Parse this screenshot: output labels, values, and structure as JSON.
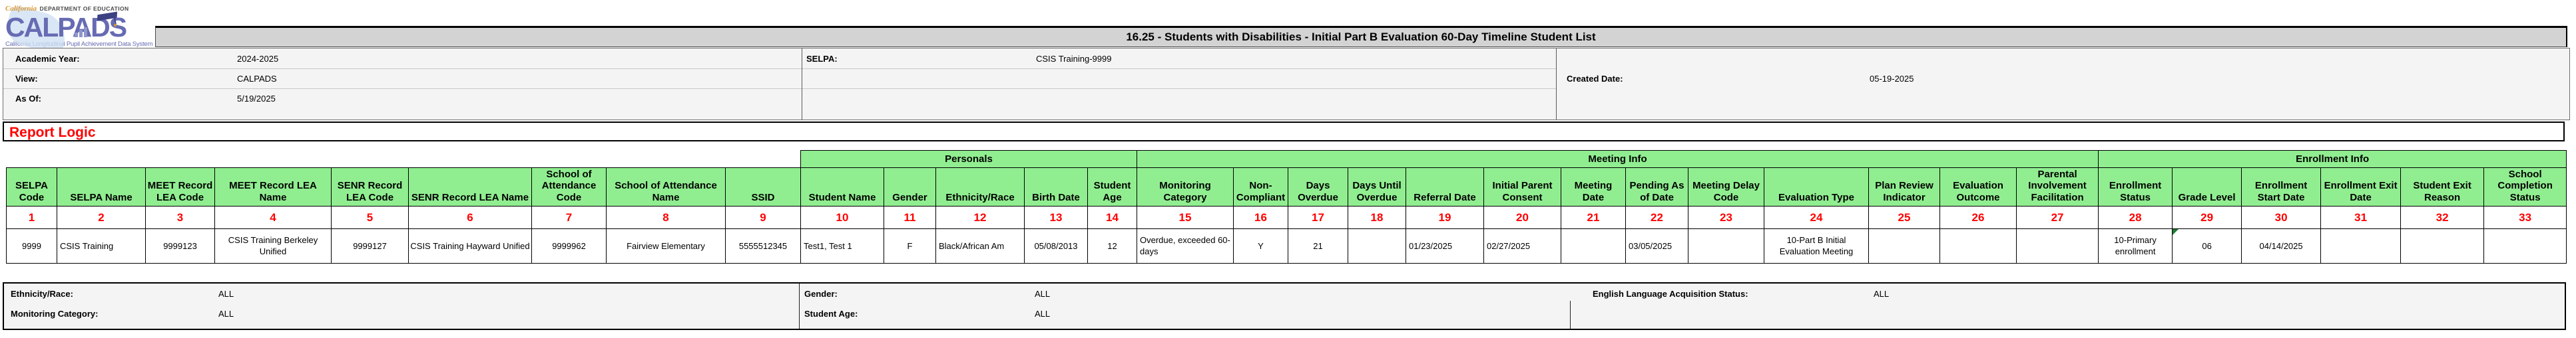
{
  "colors": {
    "header_green": "#90EE90",
    "number_red": "#FF0000",
    "title_bar_gray": "#D3D3D3",
    "logo_blue": "#666BB3",
    "logo_orange": "#D9972F",
    "report_logic_red": "#FF0000"
  },
  "logo": {
    "dept_prefix": "California",
    "dept_text": "DEPARTMENT OF EDUCATION",
    "name": "CALPADS",
    "tagline": "California Longitudinal Pupil Achievement Data System"
  },
  "title_bar": {
    "title": "16.25 - Students with Disabilities - Initial Part B Evaluation 60-Day Timeline Student List"
  },
  "info_panel": {
    "fields_left": [
      {
        "label": "Academic Year:",
        "value": "2024-2025"
      },
      {
        "label": "View:",
        "value": "CALPADS"
      },
      {
        "label": "As Of:",
        "value": "5/19/2025"
      }
    ],
    "selpa": {
      "label": "SELPA:",
      "value": "CSIS Training-9999"
    },
    "created": {
      "label": "Created Date:",
      "value": "05-19-2025"
    }
  },
  "report_logic_heading": "Report Logic",
  "table": {
    "lead_cols_without_group": 9,
    "groups": [
      {
        "label": "Personals",
        "colspan": 5
      },
      {
        "label": "Meeting Info",
        "colspan": 13
      },
      {
        "label": "Enrollment Info",
        "colspan": 6
      }
    ],
    "columns": [
      {
        "n": 1,
        "label": "SELPA Code",
        "w": 76
      },
      {
        "n": 2,
        "label": "SELPA Name",
        "w": 133,
        "align": "left"
      },
      {
        "n": 3,
        "label": "MEET Record LEA Code",
        "w": 104
      },
      {
        "n": 4,
        "label": "MEET Record LEA Name",
        "w": 175
      },
      {
        "n": 5,
        "label": "SENR Record LEA Code",
        "w": 116
      },
      {
        "n": 6,
        "label": "SENR Record LEA Name",
        "w": 185
      },
      {
        "n": 7,
        "label": "School of Attendance Code",
        "w": 112
      },
      {
        "n": 8,
        "label": "School of Attendance Name",
        "w": 179
      },
      {
        "n": 9,
        "label": "SSID",
        "w": 113
      },
      {
        "n": 10,
        "label": "Student Name",
        "w": 125,
        "align": "left"
      },
      {
        "n": 11,
        "label": "Gender",
        "w": 78
      },
      {
        "n": 12,
        "label": "Ethnicity/Race",
        "w": 133,
        "align": "left"
      },
      {
        "n": 13,
        "label": "Birth Date",
        "w": 95
      },
      {
        "n": 14,
        "label": "Student Age",
        "w": 74
      },
      {
        "n": 15,
        "label": "Monitoring Category",
        "w": 145,
        "align": "left"
      },
      {
        "n": 16,
        "label": "Non-Compliant",
        "w": 82
      },
      {
        "n": 17,
        "label": "Days Overdue",
        "w": 90
      },
      {
        "n": 18,
        "label": "Days Until Overdue",
        "w": 87
      },
      {
        "n": 19,
        "label": "Referral Date",
        "w": 117,
        "align": "left"
      },
      {
        "n": 20,
        "label": "Initial Parent Consent",
        "w": 116,
        "align": "left"
      },
      {
        "n": 21,
        "label": "Meeting Date",
        "w": 97
      },
      {
        "n": 22,
        "label": "Pending As of Date",
        "w": 94,
        "align": "left"
      },
      {
        "n": 23,
        "label": "Meeting Delay Code",
        "w": 114
      },
      {
        "n": 24,
        "label": "Evaluation Type",
        "w": 157
      },
      {
        "n": 25,
        "label": "Plan Review Indicator",
        "w": 107
      },
      {
        "n": 26,
        "label": "Evaluation Outcome",
        "w": 115
      },
      {
        "n": 27,
        "label": "Parental Involvement Facilitation",
        "w": 123
      },
      {
        "n": 28,
        "label": "Enrollment Status",
        "w": 111
      },
      {
        "n": 29,
        "label": "Grade Level",
        "w": 104,
        "corner": true
      },
      {
        "n": 30,
        "label": "Enrollment Start Date",
        "w": 119
      },
      {
        "n": 31,
        "label": "Enrollment Exit Date",
        "w": 120
      },
      {
        "n": 32,
        "label": "Student Exit Reason",
        "w": 125
      },
      {
        "n": 33,
        "label": "School Completion Status",
        "w": 124
      }
    ],
    "row_values": [
      "9999",
      "CSIS Training",
      "9999123",
      "CSIS Training Berkeley Unified",
      "9999127",
      "CSIS Training Hayward Unified",
      "9999962",
      "Fairview Elementary",
      "5555512345",
      "Test1, Test 1",
      "F",
      "Black/African Am",
      "05/08/2013",
      "12",
      "Overdue, exceeded 60-days",
      "Y",
      "21",
      "",
      "01/23/2025",
      "02/27/2025",
      "",
      "03/05/2025",
      "",
      "10-Part B Initial Evaluation Meeting",
      "",
      "",
      "",
      "10-Primary enrollment",
      "06",
      "04/14/2025",
      "",
      "",
      ""
    ]
  },
  "filters": {
    "left": [
      {
        "label": "Ethnicity/Race:",
        "value": "ALL"
      },
      {
        "label": "Monitoring Category:",
        "value": "ALL"
      }
    ],
    "middle": [
      {
        "label": "Gender:",
        "value": "ALL"
      },
      {
        "label": "Student Age:",
        "value": "ALL"
      }
    ],
    "right": [
      {
        "label": "English Language Acquisition Status:",
        "value": "ALL"
      }
    ]
  }
}
